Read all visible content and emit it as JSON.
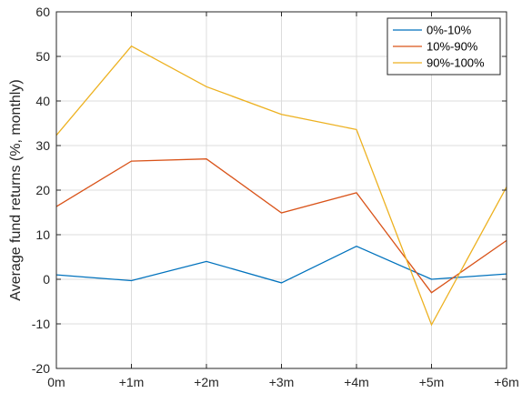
{
  "chart_data": {
    "type": "line",
    "categories": [
      "0m",
      "+1m",
      "+2m",
      "+3m",
      "+4m",
      "+5m",
      "+6m"
    ],
    "ylabel": "Average fund returns (%, monthly)",
    "xlabel": "",
    "ylim": [
      -20,
      60
    ],
    "yticks": [
      -20,
      -10,
      0,
      10,
      20,
      30,
      40,
      50,
      60
    ],
    "grid": true,
    "legend_position": "top-right",
    "series": [
      {
        "name": "0%-10%",
        "color": "#0072BD",
        "values": [
          1.0,
          -0.3,
          4.0,
          -0.8,
          7.4,
          0.0,
          1.2
        ]
      },
      {
        "name": "10%-90%",
        "color": "#D95319",
        "values": [
          16.3,
          26.5,
          27.0,
          14.9,
          19.4,
          -3.0,
          8.7
        ]
      },
      {
        "name": "90%-100%",
        "color": "#EDB120",
        "values": [
          32.3,
          52.3,
          43.2,
          37.0,
          33.6,
          -10.2,
          20.7
        ]
      }
    ]
  }
}
